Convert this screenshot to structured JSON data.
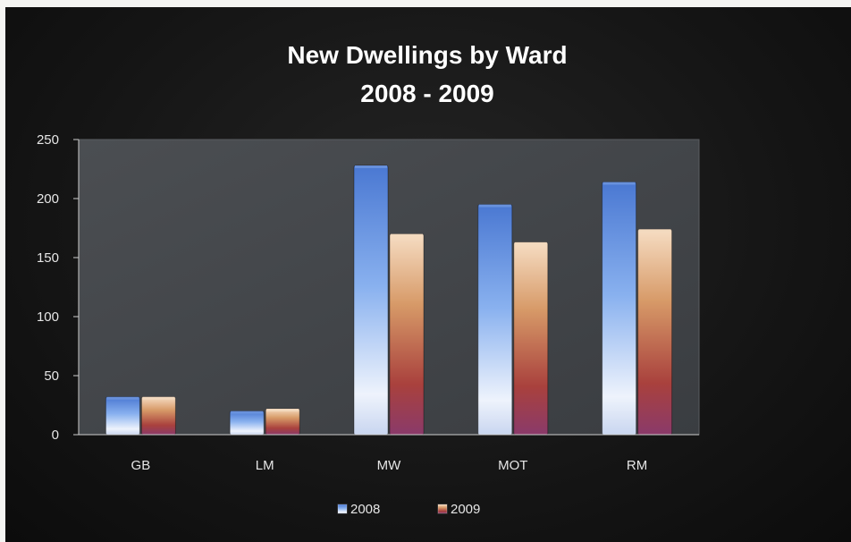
{
  "chart_data": {
    "type": "bar",
    "title": "New Dwellings by Ward",
    "subtitle": "2008 - 2009",
    "categories": [
      "GB",
      "LM",
      "MW",
      "MOT",
      "RM"
    ],
    "series": [
      {
        "name": "2008",
        "values": [
          32,
          20,
          228,
          195,
          214
        ],
        "color": "#4f7fd6"
      },
      {
        "name": "2009",
        "values": [
          32,
          22,
          170,
          163,
          174
        ],
        "color": "#b0453b"
      }
    ],
    "ylim": [
      0,
      250
    ],
    "yticks": [
      "0",
      "50",
      "100",
      "150",
      "200",
      "250"
    ],
    "xlabel": "",
    "ylabel": "",
    "grid": false,
    "legend": "bottom"
  }
}
